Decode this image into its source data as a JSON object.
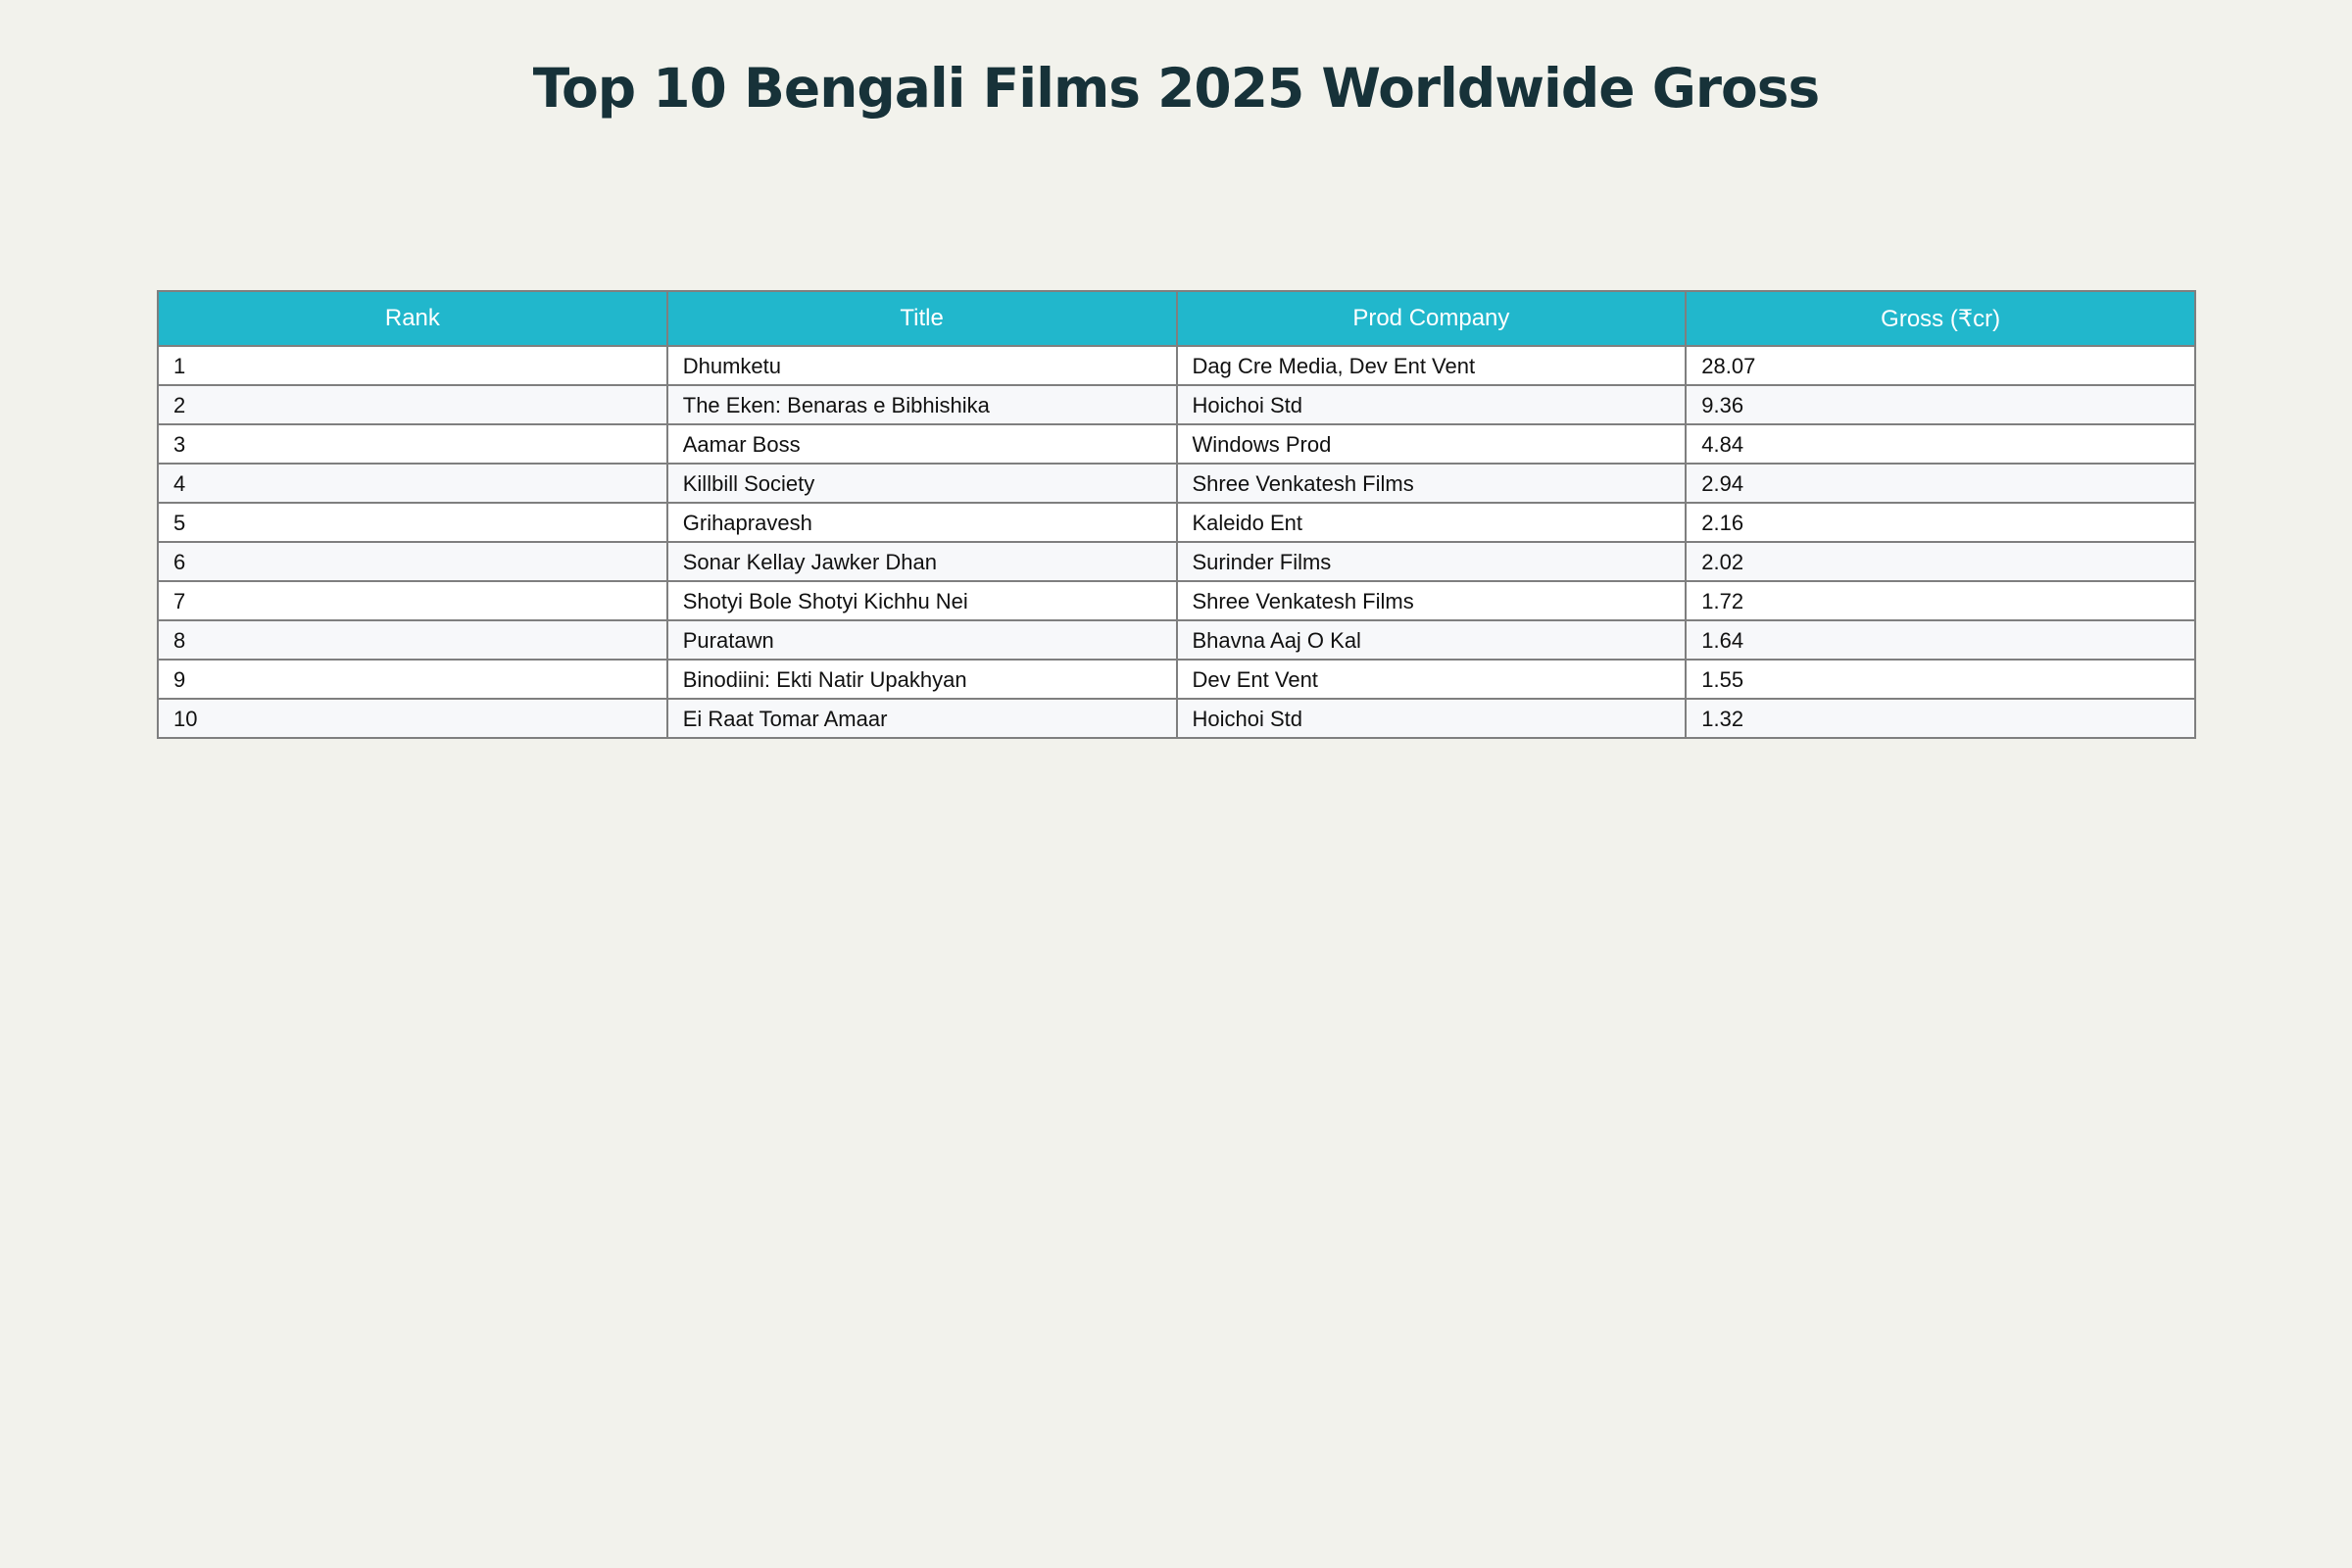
{
  "chart_data": {
    "type": "table",
    "title": "Top 10 Bengali Films 2025 Worldwide Gross",
    "columns": [
      "Rank",
      "Title",
      "Prod Company",
      "Gross (₹cr)"
    ],
    "rows": [
      [
        "1",
        "Dhumketu",
        "Dag Cre Media, Dev Ent Vent",
        "28.07"
      ],
      [
        "2",
        "The Eken: Benaras e Bibhishika",
        "Hoichoi Std",
        "9.36"
      ],
      [
        "3",
        "Aamar Boss",
        "Windows Prod",
        "4.84"
      ],
      [
        "4",
        "Killbill Society",
        "Shree Venkatesh Films",
        "2.94"
      ],
      [
        "5",
        "Grihapravesh",
        "Kaleido Ent",
        "2.16"
      ],
      [
        "6",
        "Sonar Kellay Jawker Dhan",
        "Surinder Films",
        "2.02"
      ],
      [
        "7",
        "Shotyi Bole Shotyi Kichhu Nei",
        "Shree Venkatesh Films",
        "1.72"
      ],
      [
        "8",
        "Puratawn",
        "Bhavna Aaj O Kal",
        "1.64"
      ],
      [
        "9",
        "Binodiini: Ekti Natir Upakhyan",
        "Dev Ent Vent",
        "1.55"
      ],
      [
        "10",
        "Ei Raat Tomar Amaar",
        "Hoichoi Std",
        "1.32"
      ]
    ]
  },
  "colors": {
    "background": "#f2f2ec",
    "title": "#173239",
    "header_fill": "#21b7cc",
    "header_text": "#ffffff",
    "border": "#7f7f7f",
    "row_odd": "#ffffff",
    "row_even": "#f7f8fa"
  }
}
